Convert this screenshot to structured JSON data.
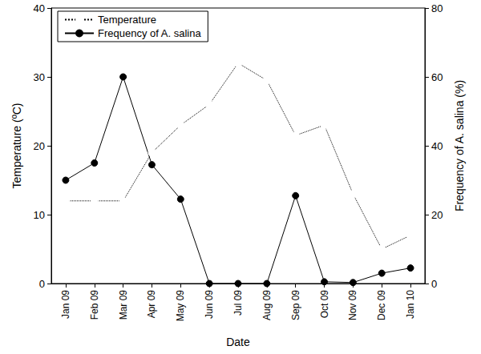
{
  "chart_data": {
    "type": "line",
    "x_label": "Date",
    "y_label": "Temperature (ºC)",
    "y2_label": "Frequency of A. salina (%)",
    "categories": [
      "Jan 09",
      "Feb 09",
      "Mar 09",
      "Apr 09",
      "May 09",
      "Jun 09",
      "Jul 09",
      "Aug 09",
      "Sep 09",
      "Oct 09",
      "Nov 09",
      "Dec 09",
      "Jan 10"
    ],
    "series": [
      {
        "name": "Temperature",
        "color": "#000000",
        "marker": "open_circle",
        "line_style": "dotted",
        "values": [
          12,
          12,
          12,
          19,
          23,
          26,
          32,
          29.5,
          21.5,
          23,
          13,
          5,
          7
        ]
      },
      {
        "name": "Frequency of A. salina",
        "color": "#000000",
        "marker": "filled_circle",
        "line_style": "solid",
        "axis": "y2",
        "values": [
          30,
          35,
          60,
          34.5,
          24.5,
          0,
          0,
          0,
          25.5,
          0.5,
          0.3,
          3,
          4.5
        ]
      }
    ],
    "ylim": [
      0,
      40
    ],
    "yticks": [
      0,
      10,
      20,
      30,
      40
    ],
    "y2lim": [
      0,
      80
    ],
    "y2ticks": [
      0,
      20,
      40,
      60,
      80
    ],
    "legend": "upper left",
    "grid": false
  }
}
